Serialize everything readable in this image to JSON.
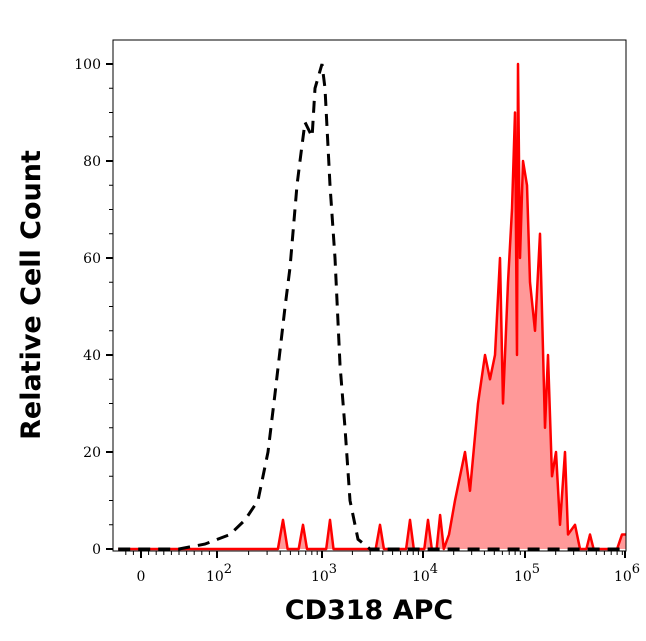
{
  "chart_data": {
    "type": "area",
    "title": "",
    "xlabel": "CD318 APC",
    "ylabel": "Relative Cell Count",
    "x_scale": "logicle",
    "xlim": [
      -40,
      1100000
    ],
    "ylim": [
      0,
      105
    ],
    "grid": false,
    "x_ticks": [
      {
        "value": 0,
        "base": "0",
        "exp": ""
      },
      {
        "value": 100,
        "base": "10",
        "exp": "2"
      },
      {
        "value": 1000,
        "base": "10",
        "exp": "3"
      },
      {
        "value": 10000,
        "base": "10",
        "exp": "4"
      },
      {
        "value": 100000,
        "base": "10",
        "exp": "5"
      },
      {
        "value": 1000000,
        "base": "10",
        "exp": "6"
      }
    ],
    "y_ticks": [
      0,
      20,
      40,
      60,
      80,
      100
    ],
    "series": [
      {
        "style": "dashed-black-line",
        "color": "#000000",
        "x": [
          -30,
          50,
          84,
          133,
          185,
          246,
          306,
          357,
          445,
          496,
          578,
          617,
          689,
          804,
          858,
          1000,
          1071,
          1200,
          1345,
          1507,
          1689,
          1893,
          2270,
          2985,
          10000,
          100000,
          1000000
        ],
        "y": [
          0,
          0,
          1,
          3,
          6,
          10,
          20,
          32,
          50,
          58,
          75,
          80,
          88,
          85,
          95,
          100,
          95,
          75,
          60,
          38,
          25,
          10,
          2,
          0,
          0,
          0,
          0
        ]
      },
      {
        "style": "red-filled",
        "color": "#ff0000",
        "fill": "#ff9999",
        "x": [
          -30,
          380,
          425,
          470,
          600,
          659,
          720,
          1100,
          1200,
          1300,
          3400,
          3750,
          4100,
          6800,
          7430,
          8100,
          10300,
          11200,
          12200,
          13600,
          14700,
          16000,
          18000,
          20600,
          25800,
          28900,
          34600,
          40500,
          45400,
          50800,
          56900,
          60800,
          68100,
          74600,
          79800,
          83500,
          85400,
          89300,
          95500,
          104700,
          111900,
          125400,
          140400,
          157100,
          167900,
          184000,
          201500,
          220500,
          246700,
          264000,
          309000,
          346000,
          400000,
          434000,
          470000,
          544000,
          800000,
          893000,
          1000000
        ],
        "y": [
          0,
          0,
          6,
          0,
          0,
          5,
          0,
          0,
          6,
          0,
          0,
          5,
          0,
          0,
          6,
          0,
          0,
          6,
          0,
          0,
          7,
          0,
          3,
          10,
          20,
          12,
          30,
          40,
          35,
          40,
          60,
          30,
          55,
          70,
          90,
          40,
          100,
          60,
          80,
          75,
          55,
          45,
          65,
          25,
          40,
          15,
          20,
          5,
          20,
          3,
          5,
          0,
          0,
          3,
          0,
          0,
          0,
          3,
          3
        ]
      }
    ]
  }
}
